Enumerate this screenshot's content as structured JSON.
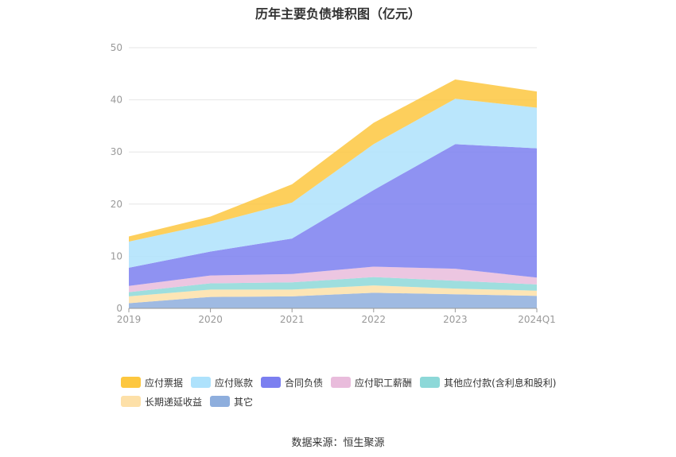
{
  "title": "历年主要负债堆积图（亿元）",
  "source": "数据来源：恒生聚源",
  "chart_data": {
    "type": "area",
    "stacked": true,
    "title": "历年主要负债堆积图（亿元）",
    "categories": [
      "2019",
      "2020",
      "2021",
      "2022",
      "2023",
      "2024Q1"
    ],
    "y_ticks": [
      "0",
      "10",
      "20",
      "30",
      "40",
      "50"
    ],
    "ylim": [
      0,
      50
    ],
    "grid": true,
    "legend_position": "bottom",
    "series": [
      {
        "name": "其它",
        "color": "#8eaedd",
        "values": [
          1.0,
          2.2,
          2.3,
          3.0,
          2.7,
          2.4
        ]
      },
      {
        "name": "长期递延收益",
        "color": "#fde0a8",
        "values": [
          1.3,
          1.4,
          1.3,
          1.4,
          1.1,
          1.0
        ]
      },
      {
        "name": "其他应付款(含利息和股利)",
        "color": "#8dd8d8",
        "values": [
          0.8,
          1.2,
          1.4,
          1.6,
          1.5,
          1.2
        ]
      },
      {
        "name": "应付职工薪酬",
        "color": "#e9bcdc",
        "values": [
          1.2,
          1.5,
          1.6,
          2.0,
          2.3,
          1.3
        ]
      },
      {
        "name": "合同负债",
        "color": "#7b7ff0",
        "values": [
          3.5,
          4.6,
          6.8,
          14.7,
          23.9,
          24.8
        ]
      },
      {
        "name": "应付账款",
        "color": "#aee2fc",
        "values": [
          5.0,
          5.3,
          6.9,
          8.8,
          8.7,
          7.8
        ]
      },
      {
        "name": "应付票据",
        "color": "#fdc73f",
        "values": [
          1.0,
          1.4,
          3.5,
          4.1,
          3.7,
          3.1
        ]
      }
    ],
    "legend_order": [
      "应付票据",
      "应付账款",
      "合同负债",
      "应付职工薪酬",
      "其他应付款(含利息和股利)",
      "长期递延收益",
      "其它"
    ]
  }
}
